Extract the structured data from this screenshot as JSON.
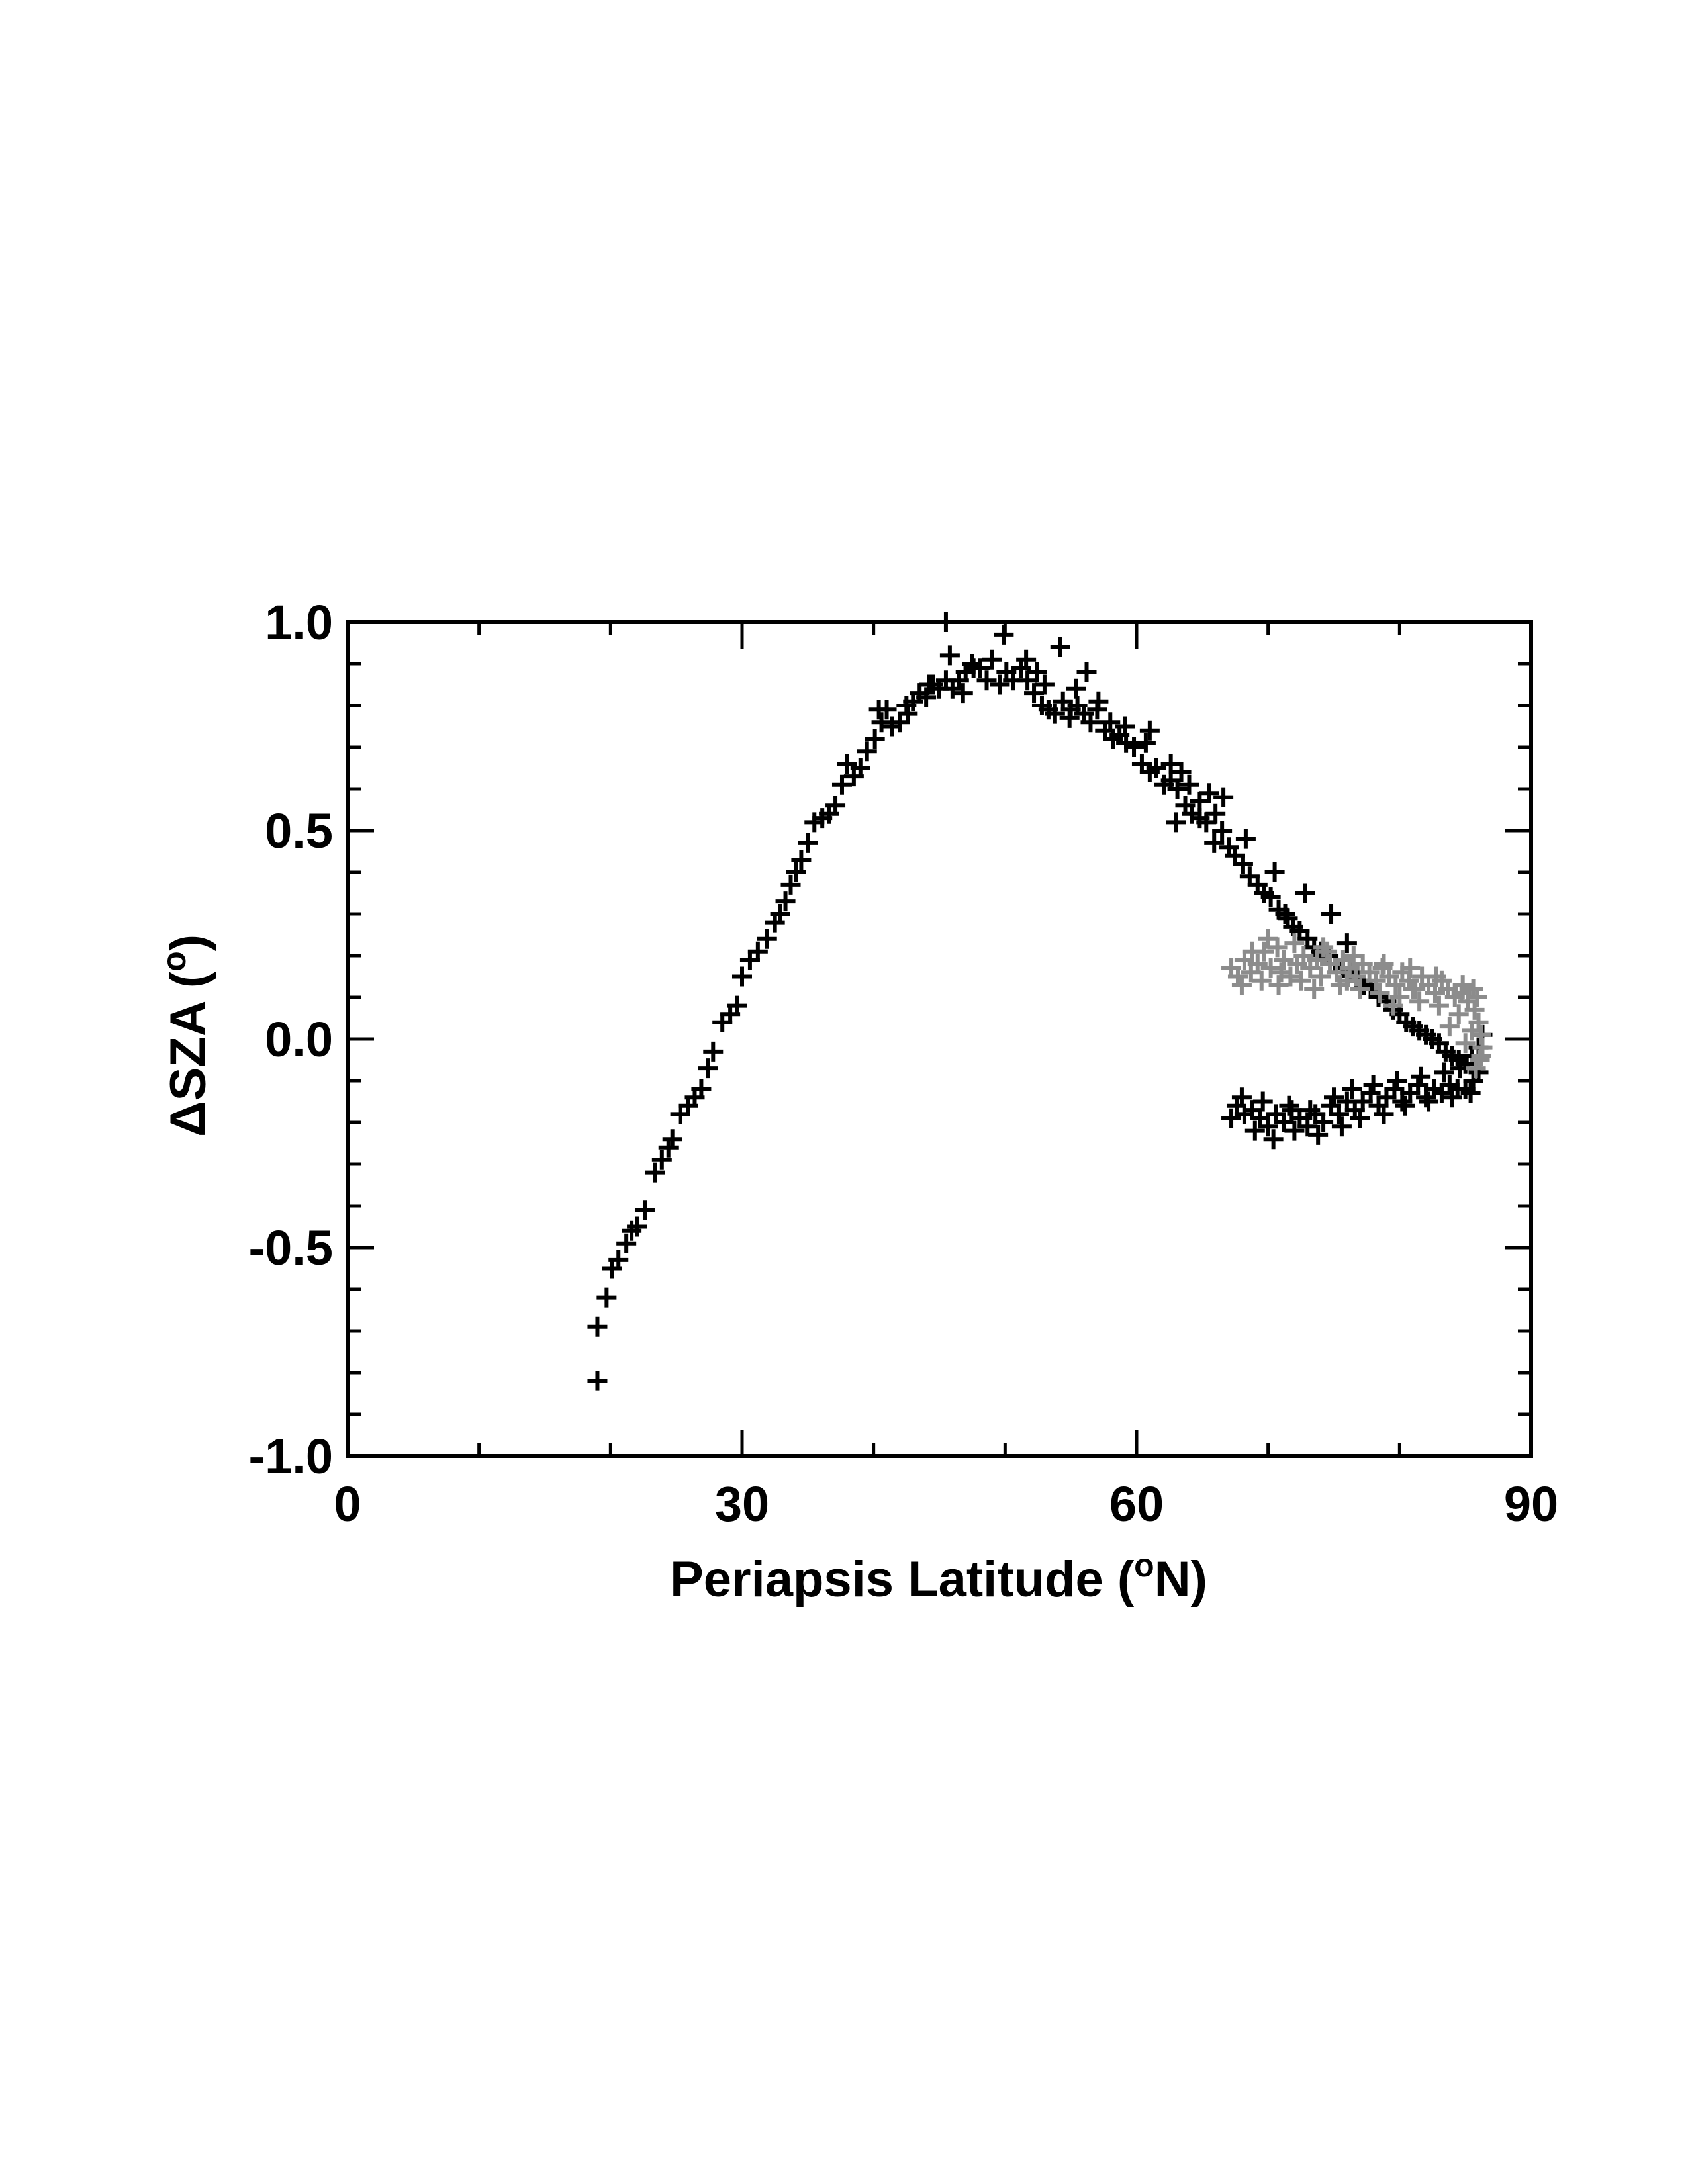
{
  "chart_data": {
    "type": "scatter",
    "title": "",
    "xlabel": {
      "main": "Periapsis Latitude (",
      "sup": "o",
      "tail": "N)"
    },
    "ylabel": {
      "main": "ΔSZA (",
      "sup": "o",
      "tail": ")"
    },
    "xlim": [
      0,
      90
    ],
    "ylim": [
      -1.0,
      1.0
    ],
    "xticks": [
      0,
      30,
      60,
      90
    ],
    "xtick_labels": [
      "0",
      "30",
      "60",
      "90"
    ],
    "yticks": [
      -1.0,
      -0.5,
      0.0,
      0.5,
      1.0
    ],
    "ytick_labels": [
      "-1.0",
      "-0.5",
      "0.0",
      "0.5",
      "1.0"
    ],
    "grid": false,
    "marker": "plus",
    "series": [
      {
        "color": "#000000",
        "points": [
          [
            19.0,
            -0.82
          ],
          [
            19.0,
            -0.69
          ],
          [
            19.7,
            -0.62
          ],
          [
            20.1,
            -0.55
          ],
          [
            20.6,
            -0.53
          ],
          [
            21.2,
            -0.49
          ],
          [
            21.6,
            -0.46
          ],
          [
            22.0,
            -0.45
          ],
          [
            22.6,
            -0.41
          ],
          [
            23.4,
            -0.32
          ],
          [
            23.9,
            -0.29
          ],
          [
            24.4,
            -0.26
          ],
          [
            24.7,
            -0.24
          ],
          [
            25.3,
            -0.18
          ],
          [
            25.9,
            -0.16
          ],
          [
            26.4,
            -0.14
          ],
          [
            26.9,
            -0.12
          ],
          [
            27.4,
            -0.07
          ],
          [
            27.8,
            -0.03
          ],
          [
            28.5,
            0.04
          ],
          [
            29.1,
            0.06
          ],
          [
            29.6,
            0.08
          ],
          [
            30.0,
            0.15
          ],
          [
            30.6,
            0.19
          ],
          [
            31.2,
            0.21
          ],
          [
            31.9,
            0.24
          ],
          [
            32.5,
            0.28
          ],
          [
            32.9,
            0.3
          ],
          [
            33.3,
            0.33
          ],
          [
            33.7,
            0.37
          ],
          [
            34.1,
            0.4
          ],
          [
            34.5,
            0.43
          ],
          [
            35.0,
            0.47
          ],
          [
            35.5,
            0.52
          ],
          [
            36.1,
            0.53
          ],
          [
            36.6,
            0.54
          ],
          [
            37.1,
            0.56
          ],
          [
            37.6,
            0.61
          ],
          [
            38.0,
            0.66
          ],
          [
            38.5,
            0.63
          ],
          [
            39.0,
            0.65
          ],
          [
            39.5,
            0.69
          ],
          [
            40.1,
            0.72
          ],
          [
            40.6,
            0.76
          ],
          [
            41.0,
            0.79
          ],
          [
            41.4,
            0.75
          ],
          [
            42.0,
            0.76
          ],
          [
            42.5,
            0.8
          ],
          [
            43.0,
            0.81
          ],
          [
            43.5,
            0.83
          ],
          [
            44.0,
            0.82
          ],
          [
            44.5,
            0.85
          ],
          [
            45.0,
            0.84
          ],
          [
            45.5,
            0.86
          ],
          [
            46.0,
            0.84
          ],
          [
            46.5,
            0.86
          ],
          [
            47.0,
            0.88
          ],
          [
            47.5,
            0.9
          ],
          [
            48.1,
            0.89
          ],
          [
            48.6,
            0.86
          ],
          [
            49.0,
            0.91
          ],
          [
            49.6,
            0.85
          ],
          [
            50.1,
            0.88
          ],
          [
            50.6,
            0.86
          ],
          [
            51.2,
            0.89
          ],
          [
            51.7,
            0.86
          ],
          [
            52.2,
            0.83
          ],
          [
            52.8,
            0.8
          ],
          [
            53.3,
            0.79
          ],
          [
            53.8,
            0.78
          ],
          [
            54.4,
            0.81
          ],
          [
            54.9,
            0.77
          ],
          [
            55.5,
            0.8
          ],
          [
            56.0,
            0.78
          ],
          [
            56.5,
            0.76
          ],
          [
            57.0,
            0.79
          ],
          [
            57.6,
            0.74
          ],
          [
            58.2,
            0.72
          ],
          [
            58.7,
            0.73
          ],
          [
            59.2,
            0.71
          ],
          [
            59.8,
            0.7
          ],
          [
            60.4,
            0.66
          ],
          [
            61.0,
            0.64
          ],
          [
            61.5,
            0.65
          ],
          [
            62.1,
            0.61
          ],
          [
            62.6,
            0.62
          ],
          [
            63.1,
            0.6
          ],
          [
            63.7,
            0.56
          ],
          [
            64.2,
            0.54
          ],
          [
            64.8,
            0.53
          ],
          [
            65.3,
            0.52
          ],
          [
            65.9,
            0.47
          ],
          [
            66.5,
            0.5
          ],
          [
            67.0,
            0.46
          ],
          [
            67.5,
            0.44
          ],
          [
            68.1,
            0.42
          ],
          [
            68.6,
            0.39
          ],
          [
            69.2,
            0.37
          ],
          [
            69.7,
            0.35
          ],
          [
            70.2,
            0.34
          ],
          [
            70.8,
            0.31
          ],
          [
            71.3,
            0.3
          ],
          [
            71.9,
            0.27
          ],
          [
            72.4,
            0.26
          ],
          [
            73.0,
            0.24
          ],
          [
            73.5,
            0.22
          ],
          [
            74.0,
            0.21
          ],
          [
            74.6,
            0.2
          ],
          [
            75.1,
            0.18
          ],
          [
            75.7,
            0.17
          ],
          [
            76.2,
            0.16
          ],
          [
            76.8,
            0.14
          ],
          [
            77.3,
            0.13
          ],
          [
            77.8,
            0.12
          ],
          [
            78.4,
            0.1
          ],
          [
            79.0,
            0.09
          ],
          [
            79.5,
            0.07
          ],
          [
            80.0,
            0.06
          ],
          [
            80.5,
            0.04
          ],
          [
            81.0,
            0.03
          ],
          [
            81.5,
            0.02
          ],
          [
            82.0,
            0.01
          ],
          [
            82.5,
            0.0
          ],
          [
            83.0,
            -0.01
          ],
          [
            83.5,
            -0.03
          ],
          [
            84.0,
            -0.04
          ],
          [
            84.5,
            -0.05
          ],
          [
            85.0,
            -0.06
          ],
          [
            85.5,
            -0.04
          ],
          [
            86.0,
            -0.02
          ],
          [
            86.3,
            0.01
          ],
          [
            86.0,
            -0.08
          ],
          [
            85.6,
            -0.1
          ],
          [
            85.0,
            -0.12
          ],
          [
            84.4,
            -0.12
          ],
          [
            83.8,
            -0.11
          ],
          [
            83.2,
            -0.13
          ],
          [
            82.6,
            -0.12
          ],
          [
            82.0,
            -0.14
          ],
          [
            81.4,
            -0.11
          ],
          [
            80.8,
            -0.13
          ],
          [
            80.2,
            -0.15
          ],
          [
            79.6,
            -0.12
          ],
          [
            79.0,
            -0.14
          ],
          [
            78.4,
            -0.16
          ],
          [
            77.8,
            -0.13
          ],
          [
            77.2,
            -0.15
          ],
          [
            76.6,
            -0.17
          ],
          [
            76.0,
            -0.15
          ],
          [
            75.4,
            -0.18
          ],
          [
            74.8,
            -0.16
          ],
          [
            74.2,
            -0.2
          ],
          [
            73.6,
            -0.18
          ],
          [
            73.0,
            -0.21
          ],
          [
            72.4,
            -0.19
          ],
          [
            71.8,
            -0.17
          ],
          [
            71.2,
            -0.2
          ],
          [
            70.6,
            -0.18
          ],
          [
            70.0,
            -0.21
          ],
          [
            69.4,
            -0.19
          ],
          [
            68.8,
            -0.17
          ],
          [
            68.2,
            -0.18
          ],
          [
            67.6,
            -0.16
          ],
          [
            67.2,
            -0.19
          ],
          [
            68.0,
            -0.14
          ],
          [
            69.0,
            -0.22
          ],
          [
            70.4,
            -0.24
          ],
          [
            72.0,
            -0.22
          ],
          [
            73.8,
            -0.23
          ],
          [
            75.6,
            -0.21
          ],
          [
            77.0,
            -0.19
          ],
          [
            78.8,
            -0.18
          ],
          [
            80.4,
            -0.16
          ],
          [
            82.2,
            -0.15
          ],
          [
            84.0,
            -0.14
          ],
          [
            85.4,
            -0.13
          ],
          [
            69.6,
            -0.15
          ],
          [
            71.6,
            -0.16
          ],
          [
            73.2,
            -0.17
          ],
          [
            75.0,
            -0.14
          ],
          [
            76.4,
            -0.12
          ],
          [
            78.0,
            -0.11
          ],
          [
            79.8,
            -0.1
          ],
          [
            81.6,
            -0.09
          ],
          [
            83.4,
            -0.08
          ],
          [
            84.6,
            -0.07
          ],
          [
            45.5,
            1.0
          ],
          [
            45.8,
            0.92
          ],
          [
            49.9,
            0.97
          ],
          [
            47.6,
            0.89
          ],
          [
            51.6,
            0.91
          ],
          [
            52.4,
            0.88
          ],
          [
            54.2,
            0.94
          ],
          [
            55.4,
            0.84
          ],
          [
            56.2,
            0.88
          ],
          [
            58.0,
            0.76
          ],
          [
            61.0,
            0.74
          ],
          [
            62.6,
            0.66
          ],
          [
            64.0,
            0.61
          ],
          [
            65.5,
            0.59
          ],
          [
            66.6,
            0.58
          ],
          [
            63.4,
            0.64
          ],
          [
            66.0,
            0.54
          ],
          [
            68.3,
            0.48
          ],
          [
            70.5,
            0.4
          ],
          [
            72.8,
            0.35
          ],
          [
            74.8,
            0.3
          ],
          [
            76.0,
            0.23
          ],
          [
            71.5,
            0.29
          ],
          [
            60.7,
            0.71
          ],
          [
            59.1,
            0.75
          ],
          [
            57.1,
            0.81
          ],
          [
            55.0,
            0.79
          ],
          [
            53.0,
            0.85
          ],
          [
            40.4,
            0.79
          ],
          [
            42.6,
            0.78
          ],
          [
            44.2,
            0.85
          ],
          [
            46.8,
            0.83
          ],
          [
            64.8,
            0.57
          ],
          [
            63.0,
            0.52
          ]
        ]
      },
      {
        "color": "#8c8c8c",
        "points": [
          [
            67.2,
            0.17
          ],
          [
            67.7,
            0.15
          ],
          [
            68.2,
            0.19
          ],
          [
            68.7,
            0.16
          ],
          [
            69.2,
            0.18
          ],
          [
            69.7,
            0.21
          ],
          [
            70.2,
            0.17
          ],
          [
            70.7,
            0.22
          ],
          [
            71.2,
            0.19
          ],
          [
            71.7,
            0.15
          ],
          [
            72.2,
            0.18
          ],
          [
            72.7,
            0.2
          ],
          [
            73.2,
            0.17
          ],
          [
            73.7,
            0.19
          ],
          [
            74.2,
            0.22
          ],
          [
            74.7,
            0.18
          ],
          [
            75.2,
            0.16
          ],
          [
            75.7,
            0.19
          ],
          [
            76.2,
            0.17
          ],
          [
            76.7,
            0.15
          ],
          [
            77.2,
            0.18
          ],
          [
            77.7,
            0.16
          ],
          [
            78.2,
            0.14
          ],
          [
            78.7,
            0.17
          ],
          [
            79.2,
            0.15
          ],
          [
            79.7,
            0.13
          ],
          [
            80.2,
            0.16
          ],
          [
            80.7,
            0.14
          ],
          [
            81.2,
            0.12
          ],
          [
            81.7,
            0.15
          ],
          [
            82.2,
            0.13
          ],
          [
            82.7,
            0.11
          ],
          [
            83.2,
            0.14
          ],
          [
            83.7,
            0.12
          ],
          [
            84.2,
            0.1
          ],
          [
            84.7,
            0.11
          ],
          [
            85.2,
            0.09
          ],
          [
            85.7,
            0.07
          ],
          [
            86.0,
            0.04
          ],
          [
            86.2,
            0.01
          ],
          [
            86.3,
            -0.02
          ],
          [
            86.1,
            -0.05
          ],
          [
            85.8,
            -0.07
          ],
          [
            68.0,
            0.13
          ],
          [
            69.5,
            0.14
          ],
          [
            70.8,
            0.13
          ],
          [
            72.5,
            0.14
          ],
          [
            74.0,
            0.15
          ],
          [
            75.5,
            0.13
          ],
          [
            77.0,
            0.12
          ],
          [
            78.5,
            0.11
          ],
          [
            80.0,
            0.1
          ],
          [
            81.5,
            0.09
          ],
          [
            83.0,
            0.08
          ],
          [
            84.5,
            0.06
          ],
          [
            85.5,
            0.02
          ],
          [
            70.0,
            0.24
          ],
          [
            72.0,
            0.23
          ],
          [
            74.5,
            0.21
          ],
          [
            76.5,
            0.2
          ],
          [
            78.8,
            0.18
          ],
          [
            80.8,
            0.17
          ],
          [
            82.8,
            0.15
          ],
          [
            84.8,
            0.13
          ],
          [
            85.9,
            0.1
          ],
          [
            86.2,
            -0.04
          ],
          [
            68.8,
            0.21
          ],
          [
            73.5,
            0.12
          ],
          [
            79.5,
            0.08
          ],
          [
            83.8,
            0.03
          ],
          [
            85.0,
            -0.01
          ],
          [
            85.6,
            0.12
          ],
          [
            71.0,
            0.16
          ],
          [
            76.0,
            0.14
          ],
          [
            81.0,
            0.12
          ]
        ]
      }
    ]
  }
}
